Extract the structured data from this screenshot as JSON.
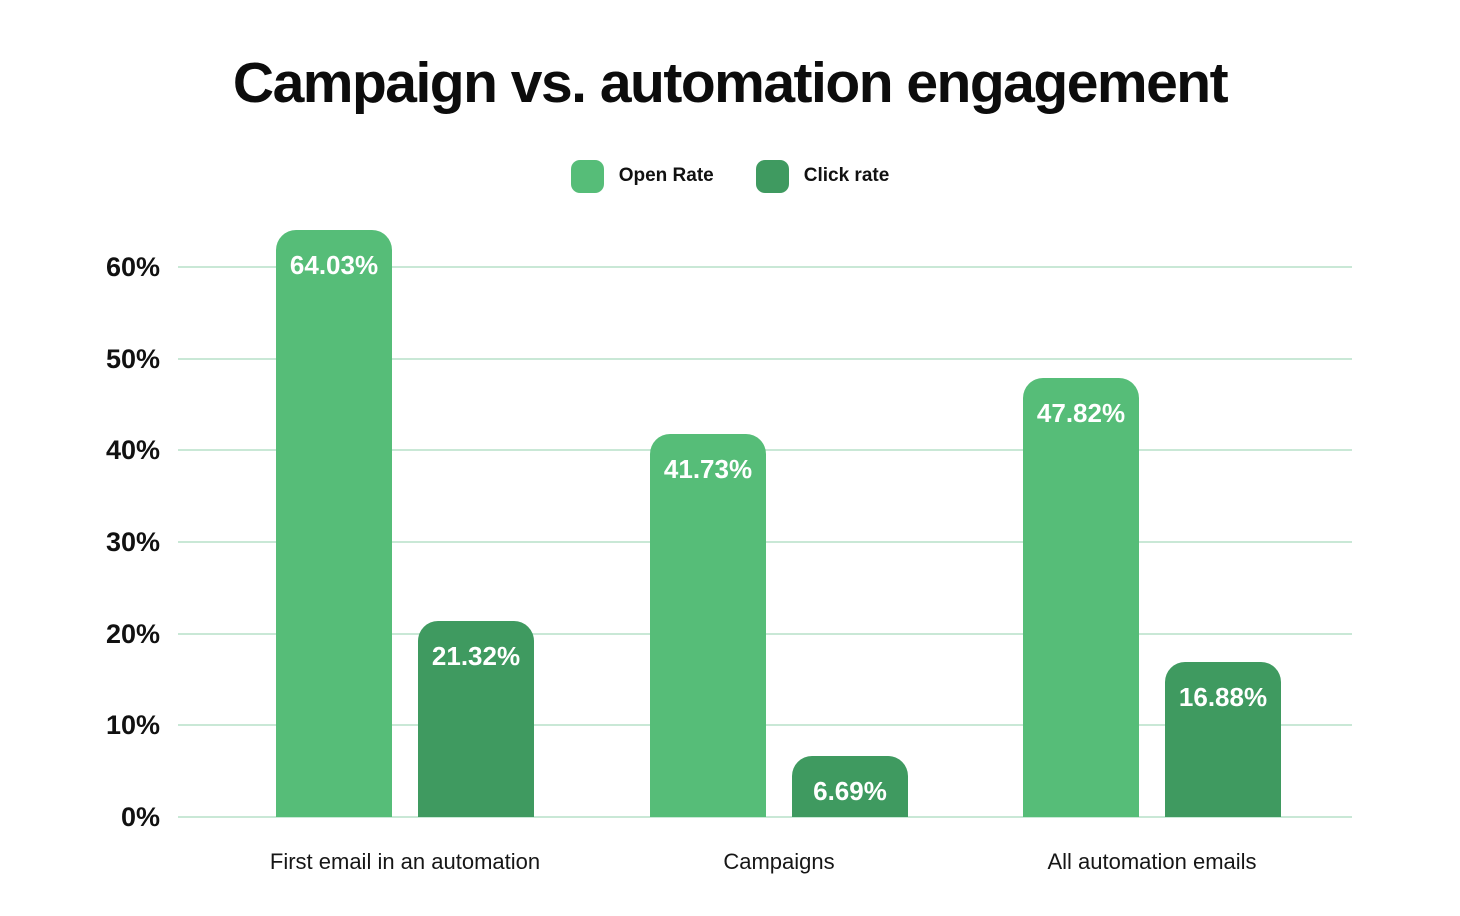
{
  "title": "Campaign vs. automation engagement",
  "chart_data": {
    "type": "bar",
    "title": "Campaign vs. automation engagement",
    "categories": [
      "First email in an automation",
      "Campaigns",
      "All automation emails"
    ],
    "series": [
      {
        "name": "Open Rate",
        "color": "#56bd78",
        "values": [
          64.03,
          41.73,
          47.82
        ],
        "labels": [
          "64.03%",
          "41.73%",
          "47.82%"
        ]
      },
      {
        "name": "Click rate",
        "color": "#3f9a60",
        "values": [
          21.32,
          6.69,
          16.88
        ],
        "labels": [
          "21.32%",
          "6.69%",
          "16.88%"
        ]
      }
    ],
    "y_axis": {
      "ticks": [
        {
          "value": 0,
          "label": "0%"
        },
        {
          "value": 10,
          "label": "10%"
        },
        {
          "value": 20,
          "label": "20%"
        },
        {
          "value": 30,
          "label": "30%"
        },
        {
          "value": 40,
          "label": "40%"
        },
        {
          "value": 50,
          "label": "50%"
        },
        {
          "value": 60,
          "label": "60%"
        }
      ],
      "range": [
        0,
        66
      ]
    },
    "grid": "horizontal",
    "legend_position": "top",
    "colors": {
      "background": "#ffffff",
      "gridline": "#c9e8d6",
      "value_label_text": "#ffffff",
      "axis_text": "#111111",
      "title_text": "#0c0c0c"
    }
  }
}
